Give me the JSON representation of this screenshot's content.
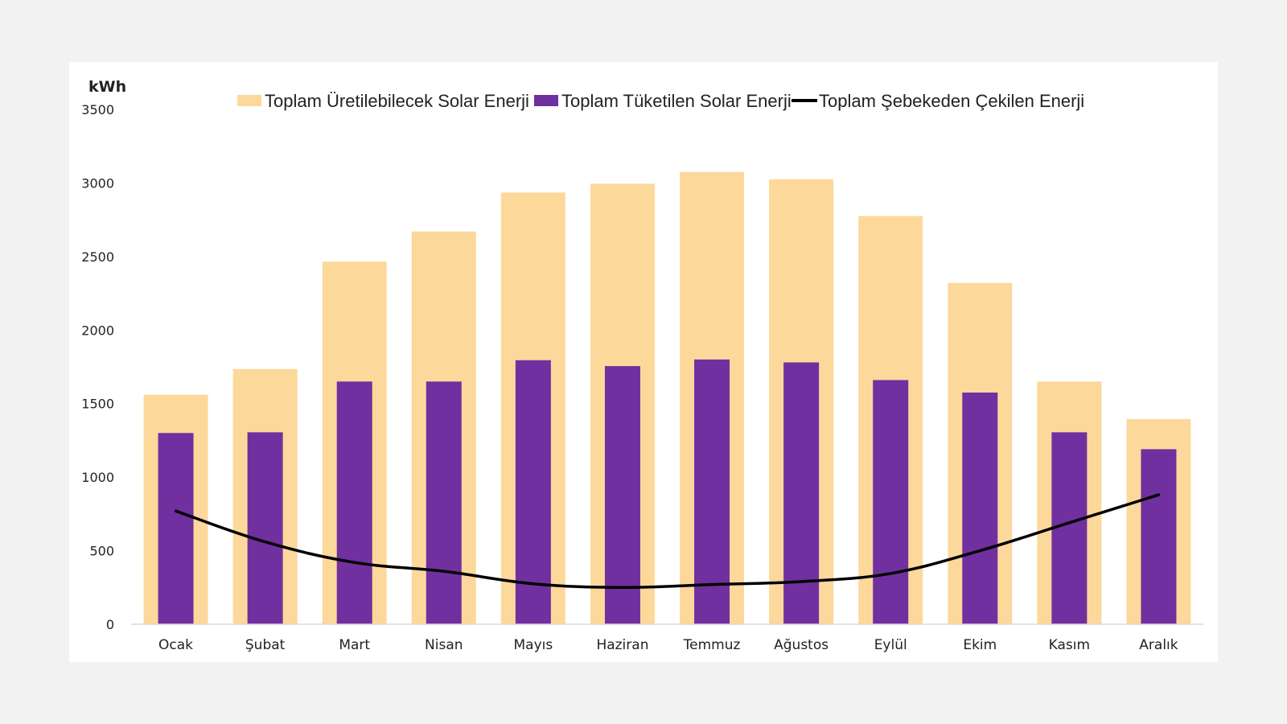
{
  "chart_data": {
    "type": "bar",
    "unit_label": "kWh",
    "categories": [
      "Ocak",
      "Şubat",
      "Mart",
      "Nisan",
      "Mayıs",
      "Haziran",
      "Temmuz",
      "Ağustos",
      "Eylül",
      "Ekim",
      "Kasım",
      "Aralık"
    ],
    "ylim": [
      0,
      3500
    ],
    "yticks": [
      0,
      500,
      1000,
      1500,
      2000,
      2500,
      3000,
      3500
    ],
    "legend_position": "top-center",
    "grid": false,
    "series": [
      {
        "name": "Toplam Üretilebilecek Solar Enerji",
        "kind": "bar",
        "color": "#fdd89b",
        "values": [
          1560,
          1735,
          2465,
          2670,
          2935,
          2995,
          3075,
          3025,
          2775,
          2320,
          1650,
          1395
        ]
      },
      {
        "name": "Toplam Tüketilen Solar Enerji",
        "kind": "bar",
        "color": "#7030a0",
        "values": [
          1300,
          1305,
          1650,
          1650,
          1795,
          1755,
          1800,
          1780,
          1660,
          1575,
          1305,
          1190
        ]
      },
      {
        "name": "Toplam Şebekeden Çekilen Enerji",
        "kind": "line",
        "color": "#000000",
        "values": [
          770,
          560,
          420,
          360,
          275,
          250,
          270,
          290,
          345,
          500,
          690,
          880
        ]
      }
    ]
  }
}
